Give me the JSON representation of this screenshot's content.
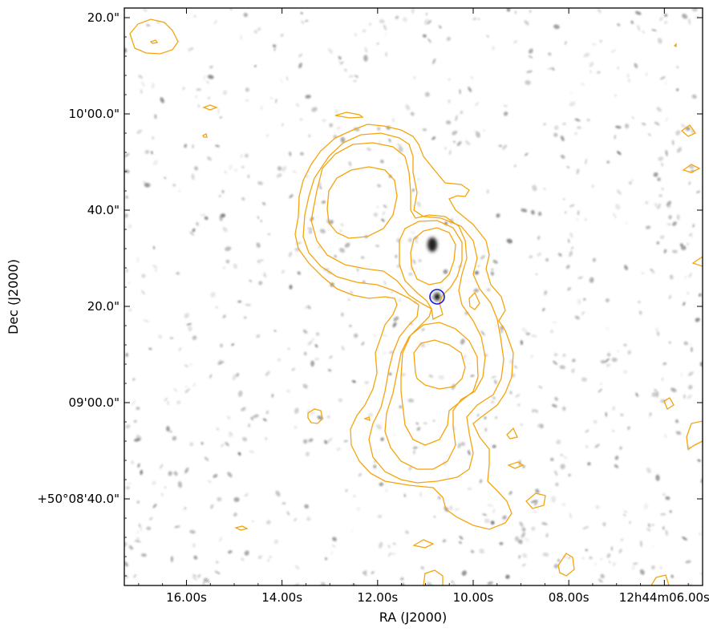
{
  "chart_data": {
    "type": "sky-image-contour",
    "title": "",
    "xlabel": "RA (J2000)",
    "ylabel": "Dec (J2000)",
    "x_ticks": [
      "16.00s",
      "14.00s",
      "12.00s",
      "10.00s",
      "08.00s",
      "12h44m06.00s"
    ],
    "y_ticks": [
      "+50°08'40.0\"",
      "09'00.0\"",
      "20.0\"",
      "40.0\"",
      "10'00.0\"",
      "20.0\""
    ],
    "x_tick_seconds": [
      16,
      14,
      12,
      10,
      8,
      6
    ],
    "y_tick_arcsec_offsets": [
      0,
      20,
      40,
      60,
      80,
      100
    ],
    "x_range_seconds": [
      17.3,
      5.2
    ],
    "y_range_arcsec_offsets": [
      -18,
      102
    ],
    "grid": false,
    "background": "grayscale optical image with scattered faint sources",
    "contour_color": "#f4a40e",
    "contour_levels": 4,
    "marker": {
      "shape": "circle",
      "color": "#1a1ad6",
      "ra_seconds": 10.45,
      "dec_arcsec_offset": 43.2
    },
    "bright_sources": [
      {
        "ra_seconds": 10.45,
        "dec_arcsec_offset": 43.2
      },
      {
        "ra_seconds": 10.55,
        "dec_arcsec_offset": 52.7
      }
    ]
  }
}
